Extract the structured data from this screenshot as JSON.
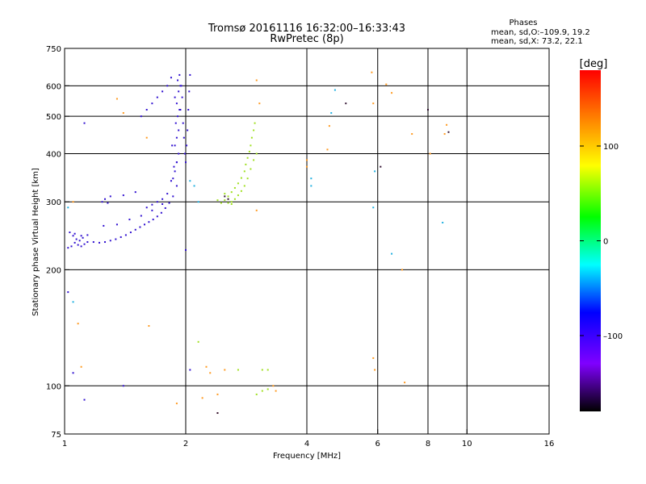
{
  "title": "Tromsø 20161116 16:32:00–16:33:43",
  "subtitle": "RwPretec (8p)",
  "stats": {
    "heading": "Phases",
    "line1": "mean, sd,O:–109.9, 19.2",
    "line2": "mean, sd,X:  73.2, 22.1"
  },
  "chart_data": {
    "type": "scatter",
    "title": "Tromsø 20161116 16:32:00–16:33:43",
    "subtitle": "RwPretec (8p)",
    "xlabel": "Frequency [MHz]",
    "ylabel": "Stationary phase Virtual Height [km]",
    "xscale": "log2",
    "yscale": "log",
    "xlim": [
      1,
      16
    ],
    "ylim": [
      75,
      750
    ],
    "x_ticks": [
      1,
      2,
      4,
      6,
      8,
      10,
      16
    ],
    "x_tick_labels": [
      "1",
      "2",
      "4",
      "6",
      "8",
      "10",
      "16"
    ],
    "y_ticks": [
      75,
      100,
      200,
      300,
      400,
      500,
      600,
      750
    ],
    "y_tick_labels": [
      "75",
      "100",
      "200",
      "300",
      "400",
      "500",
      "600",
      "750"
    ],
    "x_gridlines": [
      2,
      4,
      6,
      8,
      10
    ],
    "y_gridlines": [
      100,
      200,
      300,
      400,
      500,
      600
    ],
    "grid": true,
    "colorbar": {
      "label": "[deg]",
      "range": [
        -180,
        180
      ],
      "ticks": [
        100,
        0,
        -100
      ],
      "tick_labels": [
        "100",
        "0",
        "–100"
      ],
      "placement": "right"
    },
    "series": [
      {
        "points": [
          [
            1.02,
            228
          ],
          [
            1.04,
            230
          ],
          [
            1.06,
            235
          ],
          [
            1.08,
            232
          ],
          [
            1.1,
            230
          ],
          [
            1.12,
            233
          ],
          [
            1.14,
            236
          ],
          [
            1.05,
            245
          ],
          [
            1.07,
            240
          ],
          [
            1.09,
            238
          ],
          [
            1.11,
            242
          ],
          [
            1.03,
            250
          ],
          [
            1.06,
            248
          ],
          [
            1.1,
            245
          ],
          [
            1.14,
            246
          ],
          [
            1.18,
            236
          ],
          [
            1.22,
            235
          ],
          [
            1.26,
            236
          ],
          [
            1.3,
            238
          ],
          [
            1.34,
            240
          ],
          [
            1.38,
            243
          ],
          [
            1.42,
            246
          ],
          [
            1.46,
            250
          ],
          [
            1.5,
            254
          ],
          [
            1.54,
            258
          ],
          [
            1.58,
            262
          ],
          [
            1.62,
            266
          ],
          [
            1.66,
            270
          ],
          [
            1.7,
            275
          ],
          [
            1.74,
            281
          ],
          [
            1.78,
            289
          ],
          [
            1.82,
            298
          ],
          [
            1.86,
            310
          ],
          [
            1.9,
            330
          ],
          [
            1.86,
            345
          ],
          [
            1.88,
            360
          ],
          [
            1.9,
            380
          ],
          [
            1.92,
            400
          ],
          [
            1.88,
            420
          ],
          [
            1.9,
            440
          ],
          [
            1.92,
            460
          ],
          [
            1.89,
            480
          ],
          [
            1.91,
            500
          ],
          [
            1.93,
            520
          ],
          [
            1.9,
            540
          ],
          [
            1.88,
            560
          ],
          [
            1.92,
            580
          ],
          [
            1.94,
            600
          ],
          [
            1.91,
            620
          ],
          [
            1.93,
            640
          ],
          [
            1.95,
            600
          ],
          [
            1.96,
            560
          ],
          [
            1.94,
            520
          ],
          [
            1.97,
            480
          ],
          [
            1.98,
            440
          ],
          [
            1.99,
            400
          ],
          [
            2.0,
            380
          ],
          [
            2.01,
            420
          ],
          [
            2.02,
            460
          ],
          [
            2.03,
            520
          ],
          [
            2.04,
            580
          ],
          [
            2.05,
            640
          ],
          [
            1.24,
            300
          ],
          [
            1.26,
            305
          ],
          [
            1.28,
            298
          ],
          [
            1.3,
            310
          ],
          [
            1.4,
            312
          ],
          [
            1.5,
            318
          ],
          [
            1.55,
            500
          ],
          [
            1.6,
            520
          ],
          [
            1.65,
            540
          ],
          [
            1.7,
            560
          ],
          [
            1.75,
            580
          ],
          [
            1.8,
            600
          ],
          [
            1.84,
            630
          ],
          [
            1.25,
            260
          ],
          [
            1.35,
            262
          ],
          [
            1.45,
            270
          ],
          [
            1.55,
            276
          ],
          [
            1.65,
            285
          ],
          [
            1.75,
            296
          ],
          [
            1.8,
            315
          ],
          [
            1.84,
            340
          ],
          [
            1.87,
            370
          ],
          [
            1.7,
            300
          ],
          [
            1.75,
            305
          ],
          [
            1.65,
            295
          ],
          [
            1.6,
            290
          ],
          [
            1.12,
            480
          ],
          [
            1.05,
            108
          ],
          [
            1.12,
            92
          ],
          [
            1.4,
            100
          ],
          [
            2.05,
            110
          ],
          [
            2.0,
            225
          ],
          [
            1.02,
            175
          ],
          [
            1.9,
            380
          ],
          [
            1.85,
            420
          ]
        ]
      },
      {
        "points": [
          [
            2.45,
            298
          ],
          [
            2.5,
            303
          ],
          [
            2.55,
            310
          ],
          [
            2.6,
            318
          ],
          [
            2.65,
            326
          ],
          [
            2.7,
            335
          ],
          [
            2.75,
            346
          ],
          [
            2.8,
            360
          ],
          [
            2.82,
            375
          ],
          [
            2.85,
            390
          ],
          [
            2.88,
            405
          ],
          [
            2.9,
            420
          ],
          [
            2.92,
            440
          ],
          [
            2.95,
            460
          ],
          [
            2.97,
            480
          ],
          [
            2.6,
            300
          ],
          [
            2.65,
            305
          ],
          [
            2.7,
            312
          ],
          [
            2.75,
            320
          ],
          [
            2.8,
            330
          ],
          [
            2.85,
            345
          ],
          [
            2.9,
            365
          ],
          [
            2.95,
            385
          ],
          [
            3.0,
            400
          ],
          [
            2.55,
            298
          ],
          [
            2.6,
            296
          ],
          [
            2.4,
            303
          ],
          [
            2.5,
            315
          ],
          [
            3.1,
            110
          ],
          [
            3.1,
            97
          ],
          [
            3.2,
            98
          ],
          [
            3.2,
            110
          ],
          [
            2.15,
            130
          ],
          [
            2.7,
            110
          ],
          [
            3.0,
            95
          ]
        ]
      },
      {
        "points": [
          [
            1.05,
            300
          ],
          [
            1.08,
            145
          ],
          [
            1.1,
            112
          ],
          [
            1.35,
            555
          ],
          [
            1.4,
            510
          ],
          [
            1.6,
            440
          ],
          [
            1.62,
            143
          ],
          [
            1.9,
            90
          ],
          [
            2.2,
            93
          ],
          [
            2.25,
            112
          ],
          [
            2.3,
            108
          ],
          [
            2.4,
            95
          ],
          [
            2.5,
            110
          ],
          [
            3.0,
            285
          ],
          [
            3.05,
            540
          ],
          [
            3.3,
            100
          ],
          [
            3.35,
            97
          ],
          [
            4.0,
            370
          ],
          [
            4.0,
            385
          ],
          [
            4.5,
            410
          ],
          [
            4.55,
            472
          ],
          [
            5.8,
            650
          ],
          [
            5.85,
            540
          ],
          [
            5.9,
            110
          ],
          [
            5.85,
            118
          ],
          [
            6.3,
            605
          ],
          [
            6.5,
            575
          ],
          [
            6.9,
            200
          ],
          [
            7.0,
            102
          ],
          [
            7.3,
            450
          ],
          [
            8.1,
            400
          ],
          [
            8.8,
            450
          ],
          [
            8.9,
            475
          ],
          [
            3.0,
            620
          ],
          [
            2.4,
            85
          ]
        ]
      },
      {
        "points": [
          [
            1.02,
            290
          ],
          [
            4.6,
            510
          ],
          [
            4.7,
            585
          ],
          [
            5.85,
            290
          ],
          [
            5.9,
            360
          ],
          [
            6.5,
            220
          ],
          [
            8.7,
            265
          ],
          [
            1.05,
            165
          ],
          [
            2.05,
            340
          ],
          [
            2.1,
            330
          ],
          [
            2.15,
            300
          ],
          [
            4.1,
            345
          ],
          [
            4.1,
            330
          ]
        ]
      },
      {
        "points": [
          [
            5.0,
            540
          ],
          [
            6.1,
            370
          ],
          [
            8.0,
            520
          ],
          [
            9.0,
            455
          ],
          [
            2.4,
            85
          ],
          [
            2.5,
            310
          ],
          [
            2.55,
            305
          ]
        ]
      }
    ]
  }
}
